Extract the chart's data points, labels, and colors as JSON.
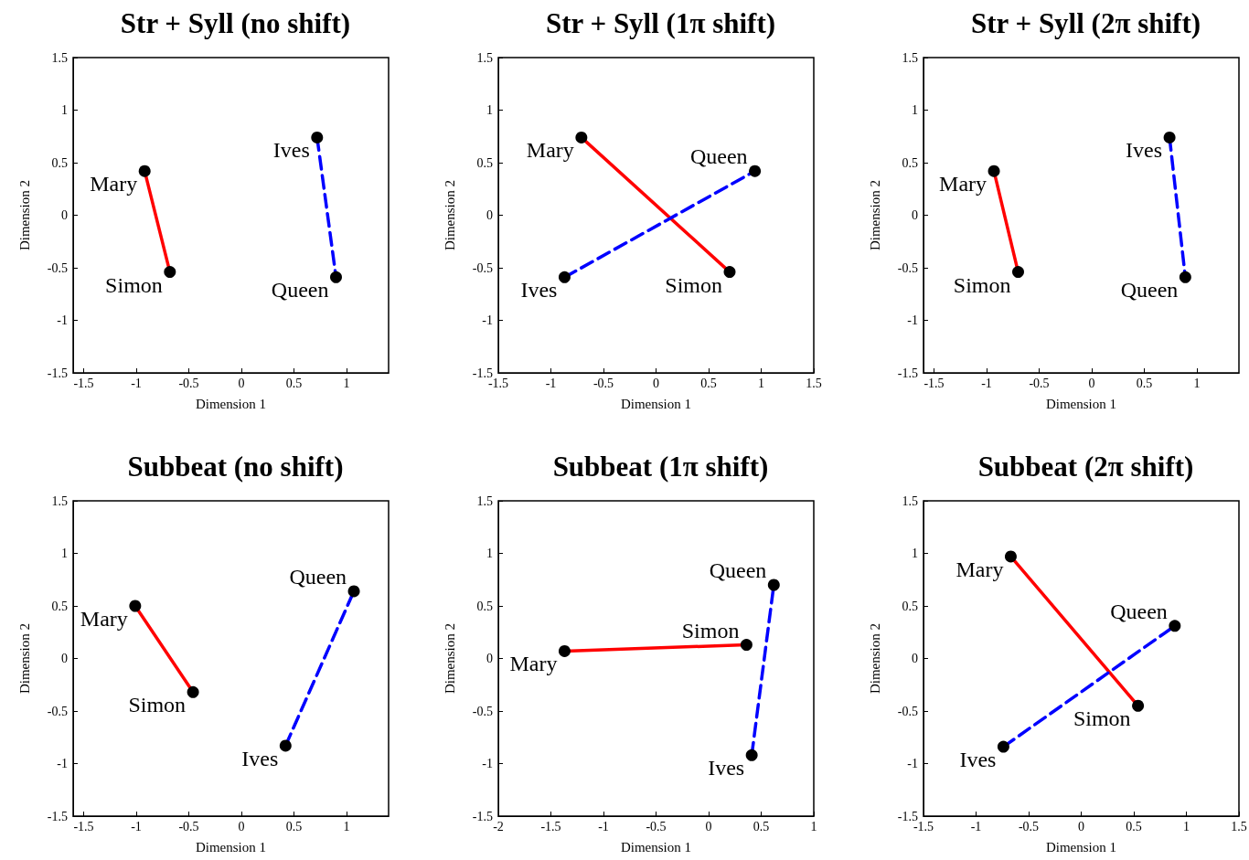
{
  "chart_data": [
    {
      "type": "line",
      "title": "Str + Syll (no shift)",
      "xlabel": "Dimension 1",
      "ylabel": "Dimension 2",
      "xlim": [
        -1.6,
        1.4
      ],
      "xticks": [
        -1.5,
        -1,
        -0.5,
        0,
        0.5,
        1
      ],
      "ylim": [
        -1.5,
        1.5
      ],
      "yticks": [
        -1.5,
        -1,
        -0.5,
        0,
        0.5,
        1,
        1.5
      ],
      "marker": "circle",
      "series": [
        {
          "color": "#ff0000",
          "line_style": "solid",
          "x": [
            -0.92,
            -0.68
          ],
          "values": [
            0.42,
            -0.54
          ]
        },
        {
          "color": "#0000ff",
          "line_style": "dashed",
          "x": [
            0.72,
            0.9
          ],
          "values": [
            0.74,
            -0.59
          ]
        }
      ],
      "annotations": [
        {
          "text": "Mary",
          "x": -0.92,
          "y": 0.42
        },
        {
          "text": "Simon",
          "x": -0.68,
          "y": -0.54
        },
        {
          "text": "Ives",
          "x": 0.72,
          "y": 0.74
        },
        {
          "text": "Queen",
          "x": 0.9,
          "y": -0.59
        }
      ]
    },
    {
      "type": "line",
      "title": "Str + Syll (1π shift)",
      "xlabel": "Dimension 1",
      "ylabel": "Dimension 2",
      "xlim": [
        -1.5,
        1.5
      ],
      "xticks": [
        -1.5,
        -1,
        -0.5,
        0,
        0.5,
        1,
        1.5
      ],
      "ylim": [
        -1.5,
        1.5
      ],
      "yticks": [
        -1.5,
        -1,
        -0.5,
        0,
        0.5,
        1,
        1.5
      ],
      "marker": "circle",
      "series": [
        {
          "color": "#ff0000",
          "line_style": "solid",
          "x": [
            -0.71,
            0.7
          ],
          "values": [
            0.74,
            -0.54
          ]
        },
        {
          "color": "#0000ff",
          "line_style": "dashed",
          "x": [
            -0.87,
            0.94
          ],
          "values": [
            -0.59,
            0.42
          ]
        }
      ],
      "annotations": [
        {
          "text": "Mary",
          "x": -0.71,
          "y": 0.74
        },
        {
          "text": "Simon",
          "x": 0.7,
          "y": -0.54
        },
        {
          "text": "Ives",
          "x": -0.87,
          "y": -0.59
        },
        {
          "text": "Queen",
          "x": 0.94,
          "y": 0.42
        }
      ]
    },
    {
      "type": "line",
      "title": "Str + Syll (2π shift)",
      "xlabel": "Dimension 1",
      "ylabel": "Dimension 2",
      "xlim": [
        -1.6,
        1.4
      ],
      "xticks": [
        -1.5,
        -1,
        -0.5,
        0,
        0.5,
        1
      ],
      "ylim": [
        -1.5,
        1.5
      ],
      "yticks": [
        -1.5,
        -1,
        -0.5,
        0,
        0.5,
        1,
        1.5
      ],
      "marker": "circle",
      "series": [
        {
          "color": "#ff0000",
          "line_style": "solid",
          "x": [
            -0.93,
            -0.7
          ],
          "values": [
            0.42,
            -0.54
          ]
        },
        {
          "color": "#0000ff",
          "line_style": "dashed",
          "x": [
            0.74,
            0.89
          ],
          "values": [
            0.74,
            -0.59
          ]
        }
      ],
      "annotations": [
        {
          "text": "Mary",
          "x": -0.93,
          "y": 0.42
        },
        {
          "text": "Simon",
          "x": -0.7,
          "y": -0.54
        },
        {
          "text": "Ives",
          "x": 0.74,
          "y": 0.74
        },
        {
          "text": "Queen",
          "x": 0.89,
          "y": -0.59
        }
      ]
    },
    {
      "type": "line",
      "title": "Subbeat (no shift)",
      "xlabel": "Dimension 1",
      "ylabel": "Dimension 2",
      "xlim": [
        -1.6,
        1.4
      ],
      "xticks": [
        -1.5,
        -1,
        -0.5,
        0,
        0.5,
        1
      ],
      "ylim": [
        -1.5,
        1.5
      ],
      "yticks": [
        -1.5,
        -1,
        -0.5,
        0,
        0.5,
        1,
        1.5
      ],
      "marker": "circle",
      "series": [
        {
          "color": "#ff0000",
          "line_style": "solid",
          "x": [
            -1.01,
            -0.46
          ],
          "values": [
            0.5,
            -0.32
          ]
        },
        {
          "color": "#0000ff",
          "line_style": "dashed",
          "x": [
            0.42,
            1.07
          ],
          "values": [
            -0.83,
            0.64
          ]
        }
      ],
      "annotations": [
        {
          "text": "Mary",
          "x": -1.01,
          "y": 0.5
        },
        {
          "text": "Simon",
          "x": -0.46,
          "y": -0.32
        },
        {
          "text": "Ives",
          "x": 0.42,
          "y": -0.83
        },
        {
          "text": "Queen",
          "x": 1.07,
          "y": 0.64
        }
      ]
    },
    {
      "type": "line",
      "title": "Subbeat (1π shift)",
      "xlabel": "Dimension 1",
      "ylabel": "Dimension 2",
      "xlim": [
        -2,
        1
      ],
      "xticks": [
        -2,
        -1.5,
        -1,
        -0.5,
        0,
        0.5,
        1
      ],
      "ylim": [
        -1.5,
        1.5
      ],
      "yticks": [
        -1.5,
        -1,
        -0.5,
        0,
        0.5,
        1,
        1.5
      ],
      "marker": "circle",
      "series": [
        {
          "color": "#ff0000",
          "line_style": "solid",
          "x": [
            -1.37,
            0.36
          ],
          "values": [
            0.07,
            0.13
          ]
        },
        {
          "color": "#0000ff",
          "line_style": "dashed",
          "x": [
            0.41,
            0.62
          ],
          "values": [
            -0.92,
            0.7
          ]
        }
      ],
      "annotations": [
        {
          "text": "Mary",
          "x": -1.37,
          "y": 0.07
        },
        {
          "text": "Simon",
          "x": 0.36,
          "y": 0.13
        },
        {
          "text": "Ives",
          "x": 0.41,
          "y": -0.92
        },
        {
          "text": "Queen",
          "x": 0.62,
          "y": 0.7
        }
      ]
    },
    {
      "type": "line",
      "title": "Subbeat (2π shift)",
      "xlabel": "Dimension 1",
      "ylabel": "Dimension 2",
      "xlim": [
        -1.5,
        1.5
      ],
      "xticks": [
        -1.5,
        -1,
        -0.5,
        0,
        0.5,
        1,
        1.5
      ],
      "ylim": [
        -1.5,
        1.5
      ],
      "yticks": [
        -1.5,
        -1,
        -0.5,
        0,
        0.5,
        1,
        1.5
      ],
      "marker": "circle",
      "series": [
        {
          "color": "#ff0000",
          "line_style": "solid",
          "x": [
            -0.67,
            0.54
          ],
          "values": [
            0.97,
            -0.45
          ]
        },
        {
          "color": "#0000ff",
          "line_style": "dashed",
          "x": [
            -0.74,
            0.89
          ],
          "values": [
            -0.84,
            0.31
          ]
        }
      ],
      "annotations": [
        {
          "text": "Mary",
          "x": -0.67,
          "y": 0.97
        },
        {
          "text": "Simon",
          "x": 0.54,
          "y": -0.45
        },
        {
          "text": "Ives",
          "x": -0.74,
          "y": -0.84
        },
        {
          "text": "Queen",
          "x": 0.89,
          "y": 0.31
        }
      ]
    }
  ]
}
